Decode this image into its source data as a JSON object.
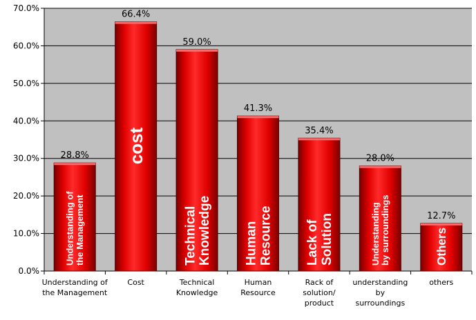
{
  "chart_data": {
    "type": "bar",
    "categories": [
      [
        "Understanding of",
        "the Management"
      ],
      [
        "Cost"
      ],
      [
        "Technical",
        "Knowledge"
      ],
      [
        "Human",
        "Resource"
      ],
      [
        "Rack of",
        "solution/",
        "product"
      ],
      [
        "understanding",
        "by",
        "surroundings"
      ],
      [
        "others"
      ]
    ],
    "in_bar_labels": [
      [
        "Understanding of",
        "the Management"
      ],
      [
        "cost"
      ],
      [
        "Technical",
        "Knowledge"
      ],
      [
        "Human",
        "Resource"
      ],
      [
        "Lack of",
        "Solution"
      ],
      [
        "Understanding",
        "by surroundings"
      ],
      [
        "Others"
      ]
    ],
    "values": [
      28.8,
      66.4,
      59.0,
      41.3,
      35.4,
      28.0,
      12.7
    ],
    "value_labels": [
      "28.8%",
      "66.4%",
      "59.0%",
      "41.3%",
      "35.4%",
      "28.0%",
      "12.7%"
    ],
    "ylim": [
      0,
      70
    ],
    "y_ticks": [
      "0.0%",
      "10.0%",
      "20.0%",
      "30.0%",
      "40.0%",
      "50.0%",
      "60.0%",
      "70.0%"
    ],
    "grid": true,
    "colors": {
      "plot_background": "#c0c0c0",
      "bar_light": "#ff2a2a",
      "bar_mid": "#e00000",
      "bar_dark": "#7a0000",
      "bar_top": "#ff6a6a",
      "bar_text": "#ffffff"
    }
  }
}
